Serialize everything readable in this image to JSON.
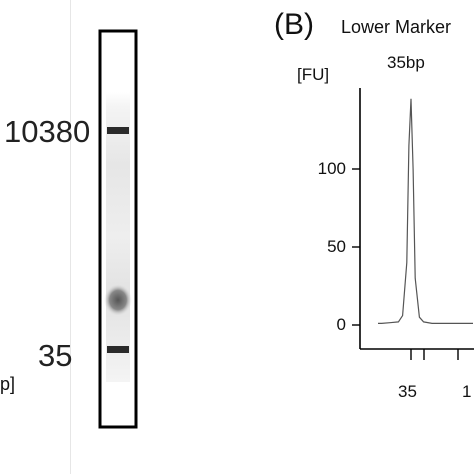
{
  "gel": {
    "ladder_labels": {
      "top": "10380",
      "bottom": "35"
    },
    "unit_fragment": "p]",
    "band_color": "#2a2a2a",
    "frame_color": "#000000"
  },
  "panel": {
    "label": "(B)"
  },
  "annotation": {
    "title": "Lower Marker",
    "size": "35bp"
  },
  "chart_data": {
    "type": "line",
    "title": "",
    "xlabel": "",
    "ylabel": "[FU]",
    "ylim": [
      0,
      145
    ],
    "y_ticks": [
      0,
      50,
      100
    ],
    "y_tick_labels": [
      "0",
      "50",
      "100"
    ],
    "x_tick_labels": [
      "35",
      "1"
    ],
    "series": [
      {
        "x": [
          20,
          25,
          28,
          30,
          32,
          33,
          34,
          34.5,
          35,
          35.5,
          36,
          37,
          38,
          40,
          45,
          50,
          60
        ],
        "values": [
          1,
          1,
          1,
          1.5,
          2,
          6,
          40,
          115,
          145,
          100,
          30,
          5,
          2,
          1,
          1,
          1,
          1
        ]
      }
    ],
    "line_color": "#555555"
  }
}
